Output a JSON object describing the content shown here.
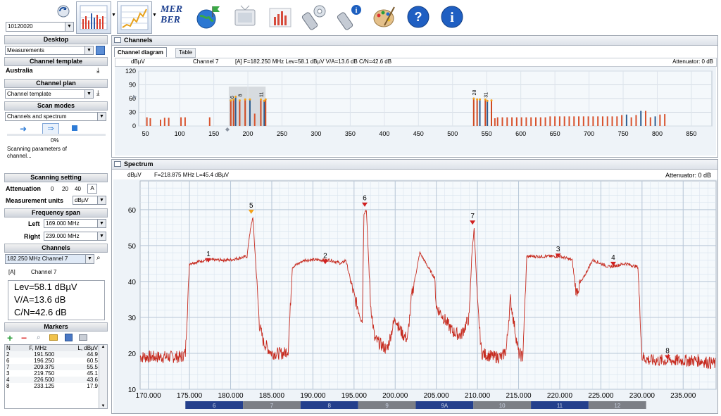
{
  "toolbar": {
    "device_select": "10120020",
    "mer_ber_label_top": "MER",
    "mer_ber_label_bottom": "BER"
  },
  "sidebar": {
    "desktop_header": "Desktop",
    "desktop_value": "Measurements",
    "channel_template_header": "Channel template",
    "channel_template_value": "Australia",
    "channel_plan_header": "Channel plan",
    "channel_plan_value": "Channel template",
    "scan_modes_header": "Scan modes",
    "scan_modes_value": "Channels and spectrum",
    "progress_percent": "0%",
    "progress_value": 0,
    "scan_status": "Scanning parameters of channel...",
    "scanning_setting_header": "Scanning setting",
    "attenuation_label": "Attenuation",
    "attenuation_options": [
      "0",
      "20",
      "40",
      "A"
    ],
    "measurement_units_label": "Measurement units",
    "measurement_units_value": "dBµV",
    "frequency_span_header": "Frequency span",
    "left_label": "Left",
    "left_value": "169.000 MHz",
    "right_label": "Right",
    "right_value": "239.000 MHz",
    "channels_header": "Channels",
    "channel_select_value": "182.250 MHz  Channel 7",
    "channel_tag": "[A]",
    "channel_name": "Channel 7",
    "lev": "Lev=58.1 dBµV",
    "va": "V/A=13.6 dB",
    "cn": "C/N=42.6 dB",
    "markers_header": "Markers",
    "markers_columns": [
      "N",
      "F, MHz",
      "L, dBµV"
    ],
    "markers_rows": [
      [
        "2",
        "191.500",
        "44.9"
      ],
      [
        "6",
        "196.250",
        "60.5"
      ],
      [
        "7",
        "209.375",
        "55.5"
      ],
      [
        "3",
        "219.750",
        "45.1"
      ],
      [
        "4",
        "226.500",
        "43.6"
      ],
      [
        "8",
        "233.125",
        "17.9"
      ]
    ]
  },
  "channels_panel": {
    "title": "Channels",
    "tabs": [
      "Channel diagram",
      "Table"
    ],
    "unit": "dBµV",
    "channel": "Channel 7",
    "info": "[A]   F=182.250 MHz  Lev=58.1 dBµV  V/A=13.6 dB    C/N=42.6 dB",
    "attenuator": "Attenuator: 0 dB",
    "y_ticks": [
      "120",
      "90",
      "60",
      "30",
      "0"
    ],
    "x_ticks": [
      "50",
      "100",
      "150",
      "200",
      "250",
      "300",
      "350",
      "400",
      "450",
      "500",
      "550",
      "600",
      "650",
      "700",
      "750",
      "800",
      "850"
    ],
    "bar_labels": [
      "6",
      "8",
      "11",
      "28",
      "31"
    ]
  },
  "spectrum_panel": {
    "title": "Spectrum",
    "unit": "dBµV",
    "info": "F=218.875 MHz   L=45.4 dBµV",
    "attenuator": "Attenuator: 0 dB",
    "y_ticks": [
      "60",
      "50",
      "40",
      "30",
      "20",
      "10"
    ],
    "x_ticks": [
      "170.000",
      "175.000",
      "180.000",
      "185.000",
      "190.000",
      "195.000",
      "200.000",
      "205.000",
      "210.000",
      "215.000",
      "220.000",
      "225.000",
      "230.000",
      "235.000"
    ],
    "channel_strip": [
      "6",
      "7",
      "8",
      "9",
      "9A",
      "10",
      "11",
      "12"
    ],
    "marker_labels": [
      "1",
      "5",
      "2",
      "6",
      "7",
      "3",
      "4",
      "8"
    ]
  },
  "chart_data": [
    {
      "type": "bar",
      "yunit": "dBµV",
      "ylim": [
        0,
        120
      ],
      "xlim": [
        40,
        880
      ],
      "grid": true,
      "x": [
        52,
        57,
        72,
        78,
        84,
        102,
        108,
        144,
        175,
        179,
        182,
        188,
        196,
        203,
        210,
        219,
        224,
        226,
        531,
        536,
        540,
        548,
        551,
        557,
        562,
        566,
        573,
        580,
        587,
        594,
        601,
        608,
        615,
        622,
        629,
        636,
        643,
        650,
        657,
        664,
        671,
        678,
        685,
        692,
        699,
        706,
        713,
        720,
        727,
        734,
        741,
        748,
        755,
        762,
        769,
        776,
        783,
        790,
        797,
        804,
        811
      ],
      "values": [
        19,
        17,
        14,
        18,
        18,
        19,
        19,
        19,
        56,
        58,
        64,
        56,
        58,
        58,
        27,
        58,
        55,
        58,
        60,
        58,
        58,
        58,
        55,
        56,
        17,
        19,
        19,
        19,
        19,
        19,
        19,
        19,
        19,
        19,
        19,
        19,
        21,
        21,
        21,
        21,
        21,
        21,
        21,
        21,
        21,
        21,
        21,
        21,
        21,
        21,
        21,
        24,
        25,
        19,
        24,
        33,
        33,
        19,
        21,
        25,
        26
      ]
    },
    {
      "type": "line",
      "yunit": "dBµV",
      "xlim": [
        169,
        239
      ],
      "ylim": [
        10,
        68
      ],
      "grid": true,
      "x": [
        169,
        174,
        174.5,
        175,
        177,
        180,
        182,
        182.3,
        182.7,
        183,
        183.5,
        184,
        185,
        186,
        186.5,
        187,
        187.5,
        189,
        190,
        192,
        193.5,
        194,
        195,
        196,
        196.2,
        196.5,
        197,
        197.5,
        198,
        199,
        200,
        200.5,
        201,
        201.5,
        202,
        203,
        204,
        204.8,
        205,
        207,
        208,
        209,
        209.3,
        209.6,
        210,
        210.5,
        212,
        213,
        213.5,
        214,
        215,
        215.5,
        216,
        218,
        220,
        221.5,
        222,
        224,
        226,
        228,
        229.5,
        230,
        231,
        233,
        235,
        237,
        239
      ],
      "values": [
        19,
        19,
        20,
        45,
        46,
        46,
        47,
        53,
        58,
        47,
        28,
        23,
        20,
        20,
        20,
        21,
        44,
        46,
        46,
        46,
        45,
        46,
        36,
        29,
        59,
        60,
        34,
        24,
        23,
        21,
        30,
        27,
        25,
        24,
        36,
        48,
        44,
        41,
        33,
        26,
        25,
        30,
        47,
        55,
        34,
        20,
        19,
        19,
        21,
        35,
        20,
        19,
        47,
        47,
        47,
        46,
        37,
        46,
        44,
        45,
        44,
        19,
        18,
        18,
        18,
        18,
        17
      ]
    }
  ]
}
